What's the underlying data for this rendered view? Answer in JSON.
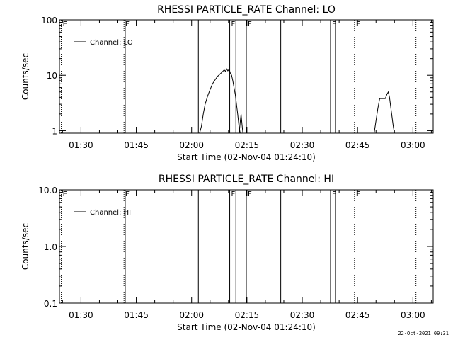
{
  "timestamp": "22-Oct-2021 09:31",
  "chart_data": [
    {
      "type": "line",
      "title": "RHESSI PARTICLE_RATE Channel: LO",
      "xlabel": "Start Time (02-Nov-04 01:24:10)",
      "ylabel": "Counts/sec",
      "yscale": "log",
      "xlim": [
        "01:24:10",
        "03:05:30"
      ],
      "ylim": [
        0.9,
        100
      ],
      "xticks": [
        "01:30",
        "01:45",
        "02:00",
        "02:15",
        "02:30",
        "02:45",
        "03:00"
      ],
      "yticks": [
        {
          "value": 1,
          "label": "1"
        },
        {
          "value": 10,
          "label": "10"
        },
        {
          "value": 100,
          "label": "100"
        }
      ],
      "legend": {
        "position": "top-left",
        "entries": [
          "Channel: LO"
        ]
      },
      "series": [
        {
          "name": "Channel: LO",
          "segments": [
            [
              [
                "02:02:10",
                0.9
              ],
              [
                "02:02:40",
                1.2
              ],
              [
                "02:03:10",
                2.0
              ],
              [
                "02:03:40",
                3.0
              ],
              [
                "02:04:20",
                4.2
              ],
              [
                "02:05:00",
                5.5
              ],
              [
                "02:05:40",
                7.0
              ],
              [
                "02:06:20",
                8.2
              ],
              [
                "02:07:00",
                9.5
              ],
              [
                "02:07:40",
                10.5
              ],
              [
                "02:08:20",
                11.5
              ],
              [
                "02:08:50",
                12.5
              ],
              [
                "02:09:10",
                11.8
              ],
              [
                "02:09:30",
                13.0
              ],
              [
                "02:09:50",
                12.0
              ],
              [
                "02:10:10",
                12.8
              ],
              [
                "02:10:30",
                11.0
              ],
              [
                "02:10:50",
                10.0
              ],
              [
                "02:11:10",
                8.0
              ],
              [
                "02:11:30",
                6.0
              ],
              [
                "02:11:50",
                4.5
              ],
              [
                "02:12:10",
                3.0
              ],
              [
                "02:12:30",
                2.0
              ],
              [
                "02:12:50",
                1.2
              ],
              [
                "02:13:10",
                0.9
              ]
            ],
            [
              [
                "02:12:55",
                0.9
              ],
              [
                "02:13:10",
                1.4
              ],
              [
                "02:13:25",
                2.0
              ],
              [
                "02:13:40",
                1.3
              ],
              [
                "02:13:55",
                0.9
              ]
            ],
            [
              [
                "02:49:30",
                0.9
              ],
              [
                "02:50:00",
                1.5
              ],
              [
                "02:50:30",
                2.5
              ],
              [
                "02:51:00",
                3.8
              ],
              [
                "02:52:30",
                3.8
              ],
              [
                "02:53:00",
                4.6
              ],
              [
                "02:53:20",
                5.0
              ],
              [
                "02:53:40",
                4.0
              ],
              [
                "02:54:10",
                2.2
              ],
              [
                "02:54:40",
                1.2
              ],
              [
                "02:55:00",
                0.9
              ]
            ]
          ]
        }
      ],
      "markers": [
        {
          "time": "01:24:40",
          "style": "dotted",
          "label": "E"
        },
        {
          "time": "01:41:40",
          "style": "dotted",
          "label": "F"
        },
        {
          "time": "01:42:00",
          "style": "solid",
          "label": ""
        },
        {
          "time": "02:01:50",
          "style": "solid",
          "label": ""
        },
        {
          "time": "02:10:20",
          "style": "solid",
          "label": "F"
        },
        {
          "time": "02:12:00",
          "style": "solid",
          "label": ""
        },
        {
          "time": "02:14:50",
          "style": "solid",
          "label": "F"
        },
        {
          "time": "02:24:10",
          "style": "solid",
          "label": ""
        },
        {
          "time": "02:37:40",
          "style": "solid",
          "label": "F"
        },
        {
          "time": "02:39:00",
          "style": "solid",
          "label": ""
        },
        {
          "time": "02:44:10",
          "style": "dotted",
          "label": "E"
        },
        {
          "time": "03:00:50",
          "style": "dotted",
          "label": ""
        }
      ]
    },
    {
      "type": "line",
      "title": "RHESSI PARTICLE_RATE Channel: HI",
      "xlabel": "Start Time (02-Nov-04 01:24:10)",
      "ylabel": "Counts/sec",
      "yscale": "log",
      "xlim": [
        "01:24:10",
        "03:05:30"
      ],
      "ylim": [
        0.1,
        10
      ],
      "xticks": [
        "01:30",
        "01:45",
        "02:00",
        "02:15",
        "02:30",
        "02:45",
        "03:00"
      ],
      "yticks": [
        {
          "value": 0.1,
          "label": "0.1"
        },
        {
          "value": 1,
          "label": "1.0"
        },
        {
          "value": 10,
          "label": "10.0"
        }
      ],
      "legend": {
        "position": "top-left",
        "entries": [
          "Channel: HI"
        ]
      },
      "series": [
        {
          "name": "Channel: HI",
          "segments": []
        }
      ],
      "markers": [
        {
          "time": "01:24:40",
          "style": "dotted",
          "label": "E"
        },
        {
          "time": "01:41:40",
          "style": "dotted",
          "label": "F"
        },
        {
          "time": "01:42:00",
          "style": "solid",
          "label": ""
        },
        {
          "time": "02:01:50",
          "style": "solid",
          "label": ""
        },
        {
          "time": "02:10:20",
          "style": "solid",
          "label": "F"
        },
        {
          "time": "02:12:00",
          "style": "solid",
          "label": ""
        },
        {
          "time": "02:14:50",
          "style": "solid",
          "label": "F"
        },
        {
          "time": "02:24:10",
          "style": "solid",
          "label": ""
        },
        {
          "time": "02:37:40",
          "style": "solid",
          "label": "F"
        },
        {
          "time": "02:39:00",
          "style": "solid",
          "label": ""
        },
        {
          "time": "02:44:10",
          "style": "dotted",
          "label": "E"
        },
        {
          "time": "03:00:50",
          "style": "dotted",
          "label": ""
        }
      ]
    }
  ]
}
